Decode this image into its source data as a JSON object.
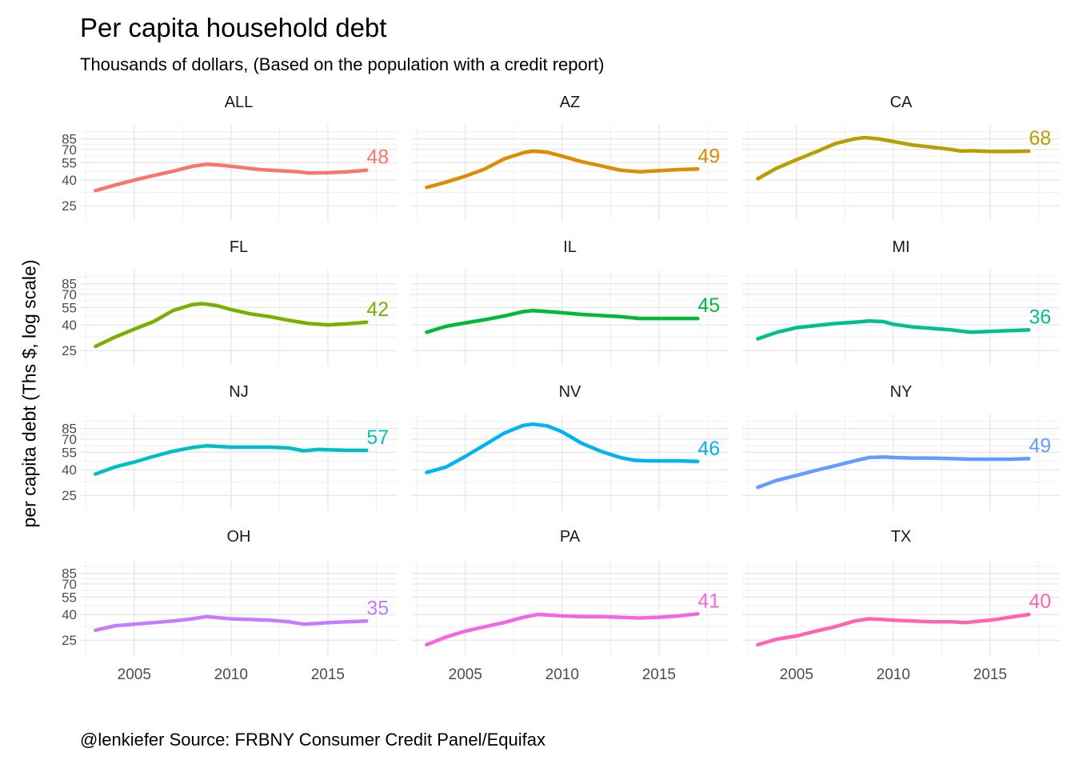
{
  "chart_data": {
    "type": "line",
    "title": "Per capita household debt",
    "subtitle": "Thousands of dollars, (Based on the population with a credit report)",
    "ylabel": "per capita debt (Ths $, log scale)",
    "xlabel": "",
    "caption": "@lenkiefer Source: FRBNY Consumer Credit Panel/Equifax",
    "y_scale": "log",
    "ylim": [
      19,
      110
    ],
    "xlim": [
      2002.2,
      2018.6
    ],
    "y_ticks": [
      25,
      40,
      55,
      70,
      85
    ],
    "x_ticks": [
      2005,
      2010,
      2015
    ],
    "legend": "none",
    "grid": true,
    "facet_layout": {
      "rows": 4,
      "cols": 3
    },
    "series": [
      {
        "name": "ALL",
        "color": "#F8766D",
        "end_label": "48",
        "x": [
          2003,
          2004,
          2005,
          2006,
          2007,
          2008,
          2008.75,
          2009.5,
          2010.5,
          2011.5,
          2012.5,
          2013.5,
          2014,
          2015,
          2016,
          2017
        ],
        "y": [
          33,
          36.5,
          40,
          43.5,
          47,
          51.5,
          53.5,
          52.5,
          50.5,
          48.5,
          47.5,
          46.5,
          45.5,
          45.8,
          46.5,
          48
        ]
      },
      {
        "name": "AZ",
        "color": "#DE8C00",
        "end_label": "49",
        "x": [
          2003,
          2004,
          2005,
          2006,
          2007,
          2008,
          2008.5,
          2009.25,
          2010,
          2011,
          2012,
          2013,
          2014,
          2015,
          2016,
          2017
        ],
        "y": [
          35,
          38.5,
          43,
          49,
          59,
          66,
          68,
          66.5,
          62,
          56,
          52,
          48,
          46.5,
          47.5,
          48.5,
          49
        ]
      },
      {
        "name": "CA",
        "color": "#B79F00",
        "end_label": "68",
        "x": [
          2003,
          2004,
          2005,
          2006,
          2007,
          2008,
          2008.5,
          2009.25,
          2010,
          2011,
          2012,
          2013,
          2013.5,
          2014,
          2015,
          2016,
          2017
        ],
        "y": [
          41,
          50,
          58,
          67,
          78,
          85,
          87,
          85,
          81,
          76,
          73,
          70,
          68,
          68.5,
          67.5,
          67.5,
          68
        ]
      },
      {
        "name": "FL",
        "color": "#7CAE00",
        "end_label": "42",
        "x": [
          2003,
          2004,
          2005,
          2006,
          2007,
          2008,
          2008.5,
          2009.25,
          2010,
          2011,
          2012,
          2013,
          2014,
          2015,
          2016,
          2017
        ],
        "y": [
          27,
          32,
          37,
          42.5,
          52,
          58,
          59,
          57,
          53,
          49,
          46.5,
          43.5,
          41,
          40,
          40.8,
          42
        ]
      },
      {
        "name": "IL",
        "color": "#00BA38",
        "end_label": "45",
        "x": [
          2003,
          2004,
          2005,
          2006,
          2007,
          2008,
          2008.5,
          2009.25,
          2010,
          2011,
          2012,
          2013,
          2014,
          2015,
          2016,
          2017
        ],
        "y": [
          35,
          39,
          41.5,
          44,
          47,
          51,
          52,
          51,
          50,
          48.5,
          47.5,
          46.5,
          45,
          45,
          45,
          45
        ]
      },
      {
        "name": "MI",
        "color": "#00C08B",
        "end_label": "36",
        "x": [
          2003,
          2004,
          2005,
          2006,
          2007,
          2008,
          2008.75,
          2009.5,
          2010,
          2011,
          2012,
          2013,
          2014,
          2015,
          2016,
          2017
        ],
        "y": [
          31,
          35,
          38,
          39.5,
          41,
          42,
          43,
          42.5,
          40.5,
          38.5,
          37.5,
          36.5,
          35,
          35.5,
          36,
          36.5
        ]
      },
      {
        "name": "NJ",
        "color": "#00BFC4",
        "end_label": "57",
        "x": [
          2003,
          2004,
          2005,
          2006,
          2007,
          2008,
          2008.75,
          2009.5,
          2010,
          2011,
          2012,
          2013,
          2013.75,
          2014.5,
          2015,
          2016,
          2017
        ],
        "y": [
          37,
          42,
          46,
          51,
          56,
          60,
          62,
          61,
          60.5,
          60.5,
          60.5,
          59.5,
          56.5,
          58,
          57.5,
          57,
          57
        ]
      },
      {
        "name": "NV",
        "color": "#00B4F0",
        "end_label": "46",
        "x": [
          2003,
          2004,
          2005,
          2006,
          2007,
          2008,
          2008.5,
          2009.25,
          2010,
          2011,
          2012,
          2013,
          2013.75,
          2014.5,
          2015,
          2016,
          2017
        ],
        "y": [
          38,
          42,
          51,
          63,
          78,
          90,
          92,
          89,
          80,
          65,
          56,
          50,
          47.5,
          47,
          47,
          47,
          46.5
        ]
      },
      {
        "name": "NY",
        "color": "#619CFF",
        "end_label": "49",
        "x": [
          2003,
          2004,
          2005,
          2006,
          2007,
          2008,
          2008.75,
          2009.5,
          2010,
          2011,
          2012,
          2013,
          2014,
          2015,
          2016,
          2017
        ],
        "y": [
          29,
          33,
          36,
          39.5,
          43,
          47,
          50,
          50.5,
          50,
          49.5,
          49.5,
          49,
          48.5,
          48.5,
          48.5,
          49
        ]
      },
      {
        "name": "OH",
        "color": "#C77CFF",
        "end_label": "35",
        "x": [
          2003,
          2004,
          2005,
          2006,
          2007,
          2008,
          2008.75,
          2009.5,
          2010,
          2011,
          2012,
          2013,
          2013.75,
          2014.5,
          2015,
          2016,
          2017
        ],
        "y": [
          30,
          32.5,
          33.5,
          34.5,
          35.5,
          37,
          38.5,
          37.5,
          37,
          36.5,
          36,
          35,
          33.5,
          34,
          34.5,
          35,
          35.5
        ]
      },
      {
        "name": "PA",
        "color": "#F564E3",
        "end_label": "41",
        "x": [
          2003,
          2004,
          2005,
          2006,
          2007,
          2008,
          2008.75,
          2009.5,
          2010,
          2011,
          2012,
          2013,
          2014,
          2015,
          2016,
          2017
        ],
        "y": [
          23,
          26.5,
          29.5,
          32,
          34.5,
          38,
          40,
          39.5,
          39,
          38.5,
          38.5,
          38,
          37.5,
          38,
          39,
          40.5
        ]
      },
      {
        "name": "TX",
        "color": "#FF64B0",
        "end_label": "40",
        "x": [
          2003,
          2004,
          2005,
          2006,
          2007,
          2008,
          2008.75,
          2009.5,
          2010,
          2011,
          2012,
          2013,
          2013.75,
          2014.5,
          2015,
          2016,
          2017
        ],
        "y": [
          23,
          25.5,
          27,
          29.5,
          32,
          35.5,
          37,
          36.5,
          36,
          35.5,
          35,
          35,
          34.5,
          35.5,
          36,
          38,
          40
        ]
      }
    ]
  }
}
